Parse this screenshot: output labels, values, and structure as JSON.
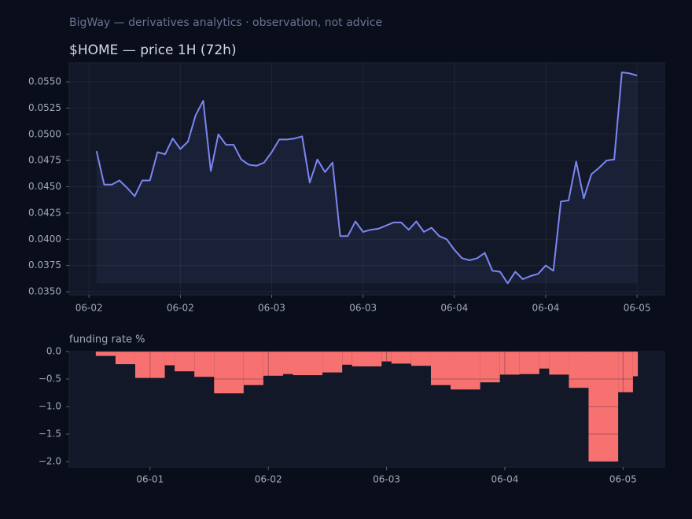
{
  "header": "BigWay — derivatives analytics · observation, not advice",
  "chart_data": [
    {
      "type": "line",
      "title": "$HOME — price 1H (72h)",
      "color": "#7c86f2",
      "grid": true,
      "x": [
        1,
        2,
        3,
        4,
        5,
        6,
        7,
        8,
        9,
        10,
        11,
        12,
        13,
        14,
        15,
        16,
        17,
        18,
        19,
        20,
        21,
        22,
        23,
        24,
        25,
        26,
        27,
        28,
        29,
        30,
        31,
        32,
        33,
        34,
        35,
        36,
        37,
        38,
        39,
        40,
        41,
        42,
        43,
        44,
        45,
        46,
        47,
        48,
        49,
        50,
        51,
        52,
        53,
        54,
        55,
        56,
        57,
        58,
        59,
        60,
        61,
        62,
        63,
        64,
        65,
        66,
        67,
        68,
        69,
        70,
        71,
        72
      ],
      "values": [
        0.0484,
        0.0452,
        0.0452,
        0.0456,
        0.0449,
        0.0441,
        0.0456,
        0.0456,
        0.0483,
        0.0481,
        0.0496,
        0.0486,
        0.0493,
        0.0518,
        0.0532,
        0.0465,
        0.05,
        0.049,
        0.049,
        0.0476,
        0.0471,
        0.047,
        0.0473,
        0.0483,
        0.0495,
        0.0495,
        0.0496,
        0.0498,
        0.0454,
        0.0476,
        0.0464,
        0.0473,
        0.0403,
        0.0403,
        0.0417,
        0.0407,
        0.0409,
        0.041,
        0.0413,
        0.0416,
        0.0416,
        0.0409,
        0.0417,
        0.0407,
        0.0411,
        0.0403,
        0.04,
        0.039,
        0.0382,
        0.038,
        0.0382,
        0.0387,
        0.037,
        0.0369,
        0.0358,
        0.0369,
        0.0362,
        0.0365,
        0.0367,
        0.0375,
        0.037,
        0.0436,
        0.0437,
        0.0474,
        0.0439,
        0.0462,
        0.0468,
        0.0475,
        0.0476,
        0.0559,
        0.0558,
        0.0556
      ],
      "xlim": [
        -2.6,
        75.6
      ],
      "xticks": [
        {
          "value": 0,
          "label": "06-02"
        },
        {
          "value": 12,
          "label": "06-02"
        },
        {
          "value": 24,
          "label": "06-03"
        },
        {
          "value": 36,
          "label": "06-03"
        },
        {
          "value": 48,
          "label": "06-04"
        },
        {
          "value": 60,
          "label": "06-04"
        },
        {
          "value": 72,
          "label": "06-05"
        }
      ],
      "ylim": [
        0.0347,
        0.0568
      ],
      "yticks": [
        {
          "value": 0.035,
          "label": "0.0350"
        },
        {
          "value": 0.0375,
          "label": "0.0375"
        },
        {
          "value": 0.04,
          "label": "0.0400"
        },
        {
          "value": 0.0425,
          "label": "0.0425"
        },
        {
          "value": 0.045,
          "label": "0.0450"
        },
        {
          "value": 0.0475,
          "label": "0.0475"
        },
        {
          "value": 0.05,
          "label": "0.0500"
        },
        {
          "value": 0.0525,
          "label": "0.0525"
        },
        {
          "value": 0.055,
          "label": "0.0550"
        }
      ]
    },
    {
      "type": "histogram",
      "title": "funding rate %",
      "color": "#f87171",
      "grid": true,
      "bins": [
        -11,
        -7,
        -3,
        3,
        5,
        9,
        13,
        19,
        23,
        27,
        29,
        35,
        39,
        41,
        47,
        49,
        53,
        57,
        61,
        67,
        71,
        75,
        79,
        81,
        85,
        89,
        95,
        98,
        99
      ],
      "values": [
        -0.08,
        -0.23,
        -0.48,
        -0.25,
        -0.36,
        -0.46,
        -0.76,
        -0.61,
        -0.44,
        -0.41,
        -0.43,
        -0.38,
        -0.24,
        -0.27,
        -0.18,
        -0.22,
        -0.26,
        -0.61,
        -0.69,
        -0.56,
        -0.42,
        -0.41,
        -0.31,
        -0.42,
        -0.66,
        -2.0,
        -0.74,
        -0.45
      ],
      "xlim": [
        -16.4,
        104.4
      ],
      "xticks": [
        {
          "value": 0,
          "label": "06-01"
        },
        {
          "value": 24,
          "label": "06-02"
        },
        {
          "value": 48,
          "label": "06-03"
        },
        {
          "value": 72,
          "label": "06-04"
        },
        {
          "value": 96,
          "label": "06-05"
        }
      ],
      "ylim": [
        -2.1,
        0
      ],
      "yticks": [
        {
          "value": 0,
          "label": "0.0"
        },
        {
          "value": -0.5,
          "label": "−0.5"
        },
        {
          "value": -1,
          "label": "−1.0"
        },
        {
          "value": -1.5,
          "label": "−1.5"
        },
        {
          "value": -2,
          "label": "−2.0"
        }
      ]
    }
  ]
}
